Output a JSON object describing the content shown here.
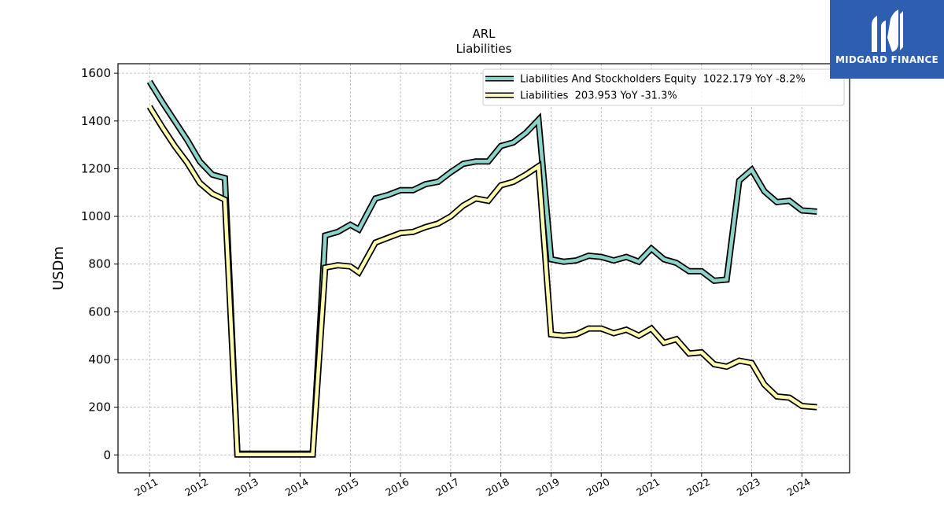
{
  "chart_data": {
    "type": "line",
    "title": "ARL",
    "subtitle": "Liabilities",
    "ylabel": "USDm",
    "xlabel": "",
    "ylim": [
      -75,
      1640
    ],
    "xlim": [
      2010.37,
      2024.95
    ],
    "yticks": [
      0,
      200,
      400,
      600,
      800,
      1000,
      1200,
      1400,
      1600
    ],
    "xticks": [
      "2011",
      "2012",
      "2013",
      "2014",
      "2015",
      "2016",
      "2017",
      "2018",
      "2019",
      "2020",
      "2021",
      "2022",
      "2023",
      "2024"
    ],
    "grid": true,
    "legend_position": "top-right",
    "series": [
      {
        "name": "Liabilities And Stockholders Equity  1022.179 YoY -8.2%",
        "color": "#8dd3c7",
        "x": [
          2011.0,
          2011.25,
          2011.5,
          2011.75,
          2012.0,
          2012.25,
          2012.5,
          2012.75,
          2013.0,
          2013.25,
          2013.5,
          2013.75,
          2014.0,
          2014.25,
          2014.5,
          2014.75,
          2015.0,
          2015.17,
          2015.5,
          2015.75,
          2016.0,
          2016.25,
          2016.5,
          2016.75,
          2017.0,
          2017.25,
          2017.5,
          2017.75,
          2018.0,
          2018.25,
          2018.5,
          2018.75,
          2019.0,
          2019.25,
          2019.5,
          2019.75,
          2020.0,
          2020.25,
          2020.5,
          2020.75,
          2021.0,
          2021.25,
          2021.5,
          2021.75,
          2022.0,
          2022.25,
          2022.5,
          2022.75,
          2023.0,
          2023.25,
          2023.5,
          2023.75,
          2024.0,
          2024.3
        ],
        "values": [
          1565,
          1480,
          1400,
          1320,
          1230,
          1175,
          1160,
          5,
          5,
          5,
          5,
          5,
          5,
          5,
          920,
          935,
          965,
          945,
          1075,
          1090,
          1110,
          1110,
          1135,
          1145,
          1185,
          1220,
          1230,
          1230,
          1295,
          1310,
          1350,
          1405,
          820,
          810,
          815,
          835,
          830,
          815,
          830,
          810,
          865,
          820,
          805,
          770,
          770,
          730,
          735,
          1150,
          1195,
          1105,
          1060,
          1065,
          1025,
          1020
        ]
      },
      {
        "name": "Liabilities  203.953 YoY -31.3%",
        "color": "#ffffb3",
        "x": [
          2011.0,
          2011.25,
          2011.5,
          2011.75,
          2012.0,
          2012.25,
          2012.5,
          2012.75,
          2013.0,
          2013.25,
          2013.5,
          2013.75,
          2014.0,
          2014.25,
          2014.5,
          2014.75,
          2015.0,
          2015.17,
          2015.5,
          2015.75,
          2016.0,
          2016.25,
          2016.5,
          2016.75,
          2017.0,
          2017.25,
          2017.5,
          2017.75,
          2018.0,
          2018.25,
          2018.5,
          2018.75,
          2019.0,
          2019.25,
          2019.5,
          2019.75,
          2020.0,
          2020.25,
          2020.5,
          2020.75,
          2021.0,
          2021.25,
          2021.5,
          2021.75,
          2022.0,
          2022.25,
          2022.5,
          2022.75,
          2023.0,
          2023.25,
          2023.5,
          2023.75,
          2024.0,
          2024.3
        ],
        "values": [
          1460,
          1375,
          1295,
          1225,
          1140,
          1095,
          1070,
          2,
          2,
          2,
          2,
          2,
          2,
          2,
          785,
          795,
          790,
          765,
          890,
          910,
          930,
          935,
          955,
          970,
          1000,
          1045,
          1075,
          1065,
          1130,
          1145,
          1175,
          1210,
          505,
          500,
          505,
          530,
          530,
          510,
          525,
          500,
          530,
          470,
          485,
          425,
          430,
          380,
          370,
          395,
          385,
          295,
          245,
          240,
          205,
          200
        ]
      }
    ]
  },
  "logo": {
    "text": "MIDGARD FINANCE"
  }
}
